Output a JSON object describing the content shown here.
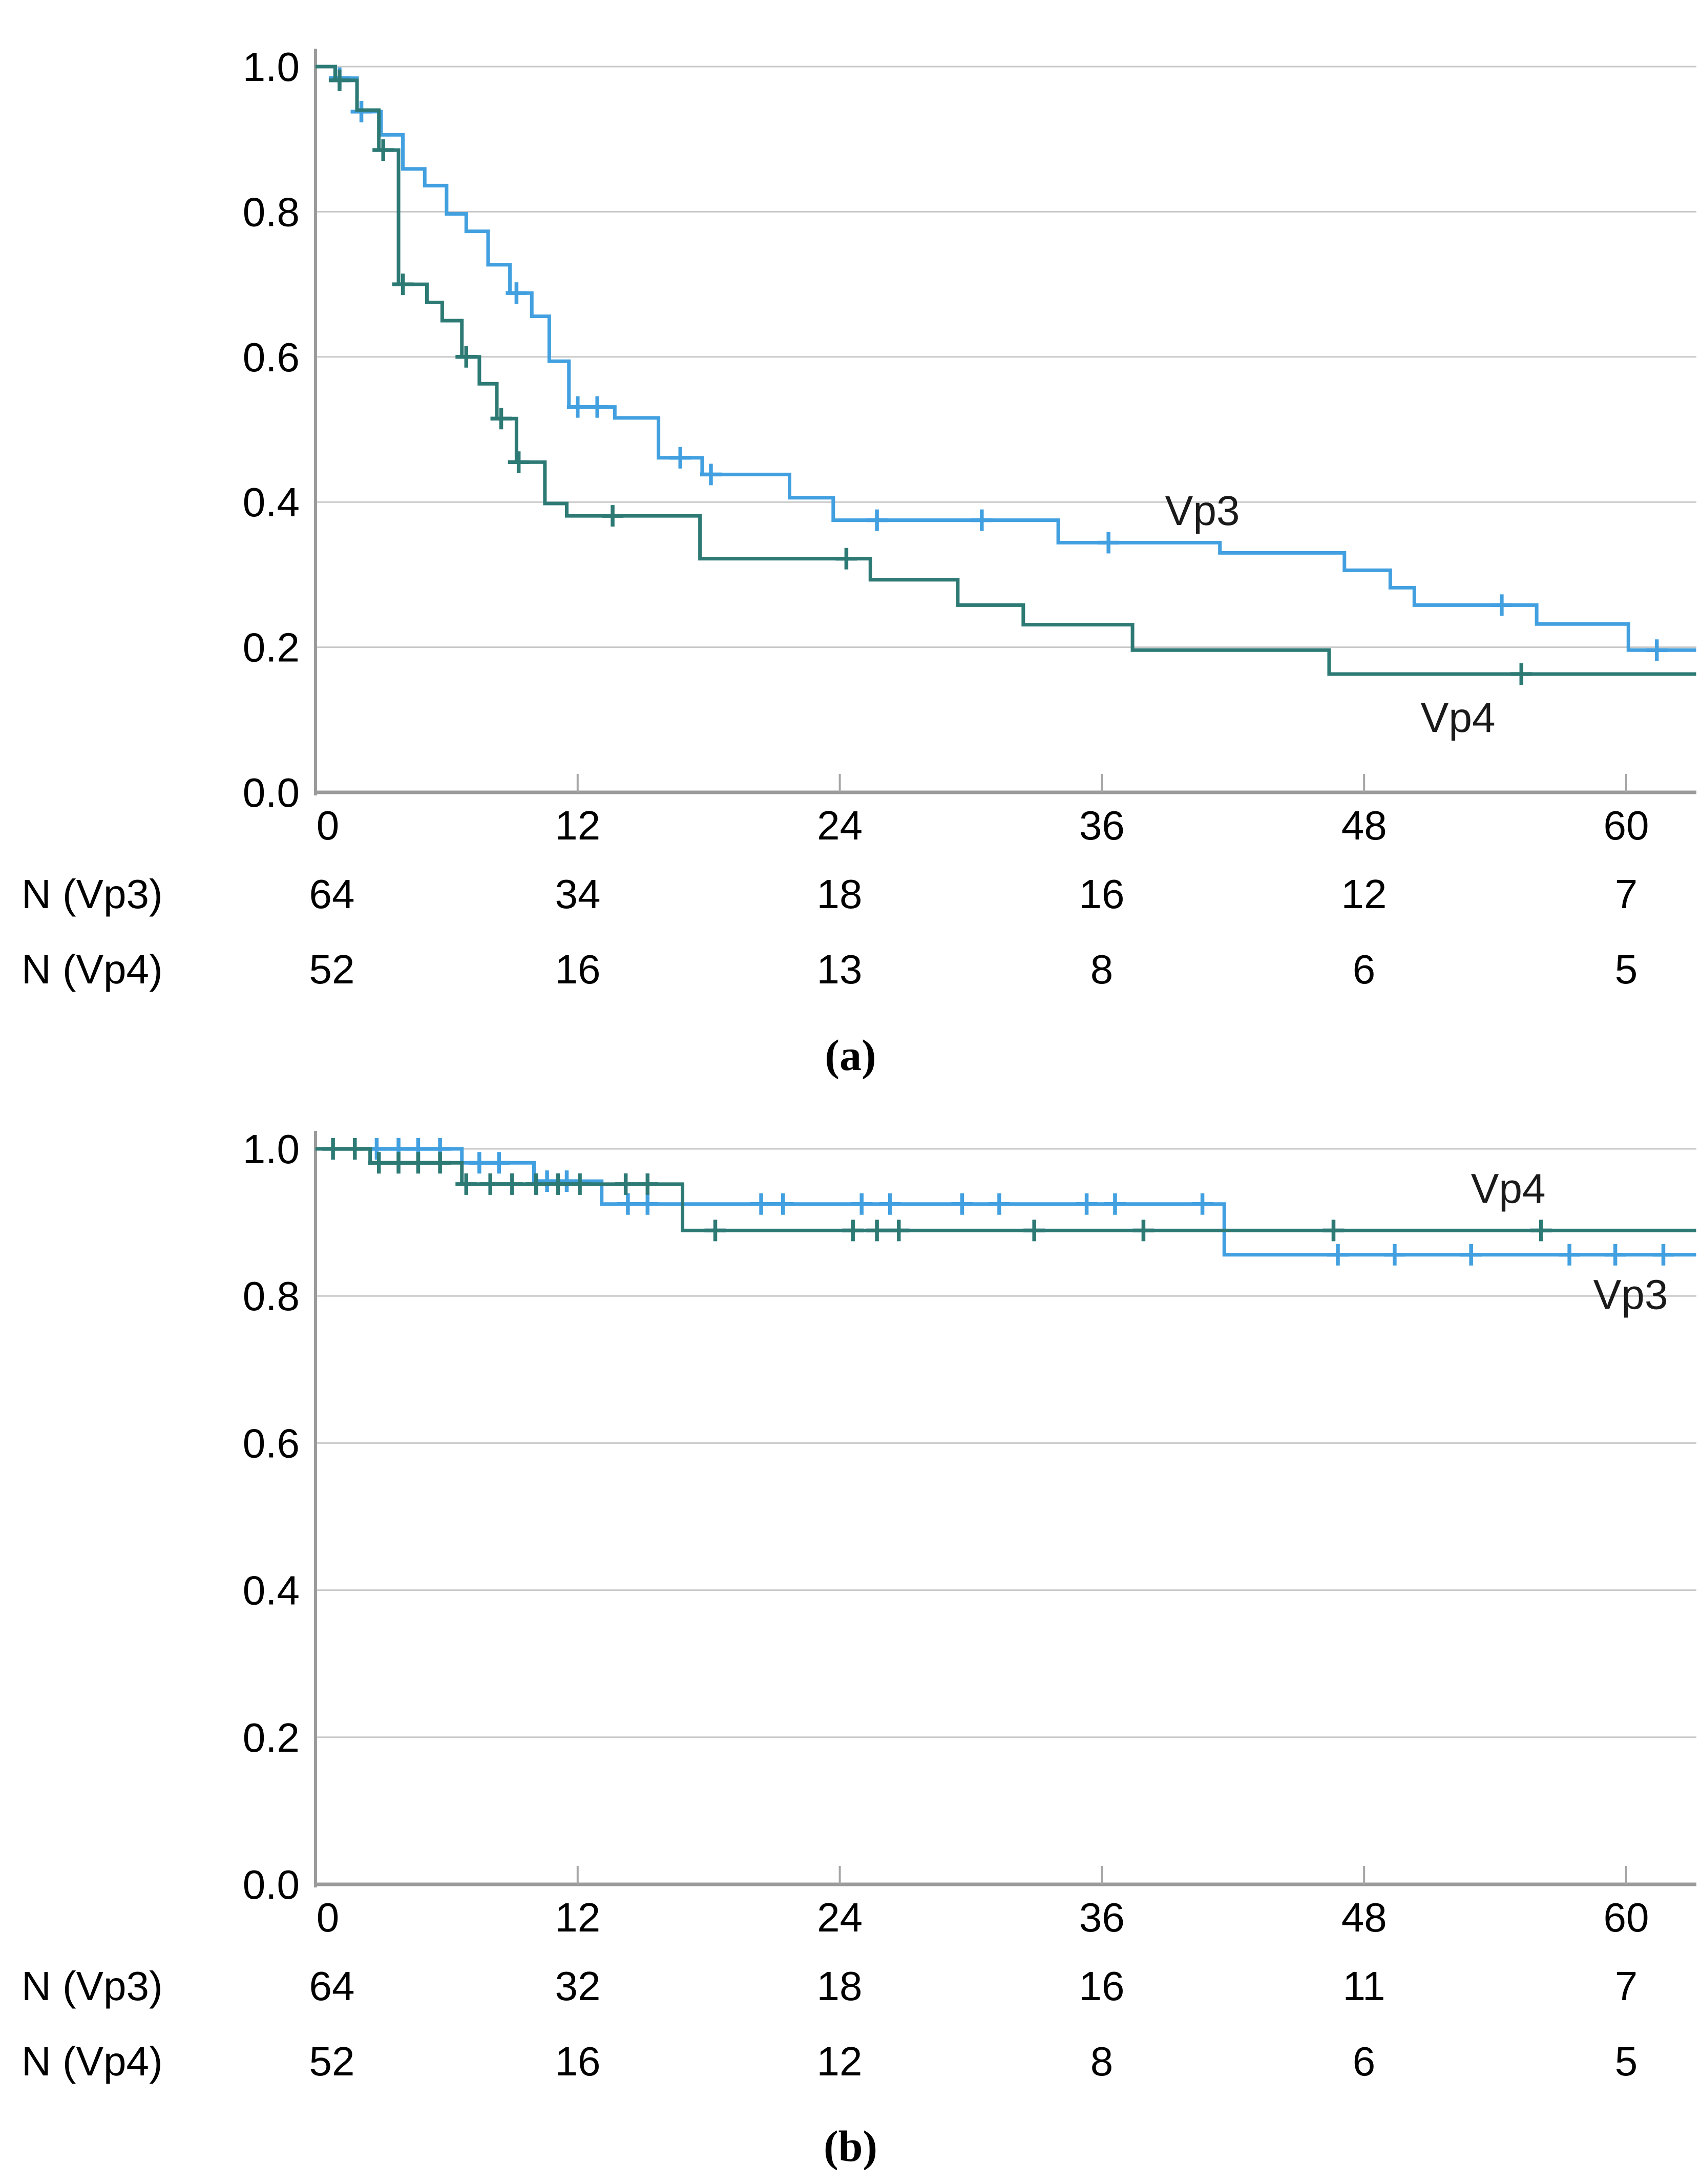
{
  "colors": {
    "vp3": "#42A0E0",
    "vp4": "#2D7A75",
    "grid": "#C9C9C9",
    "axis": "#9B9B9B",
    "tick": "#A6A6A6",
    "text": "#000000",
    "curve_label": "#1A1A1A"
  },
  "chart_data": [
    {
      "id": "a",
      "type": "line",
      "subtype": "kaplan-meier-step",
      "caption": "(a)",
      "x_ticks": [
        0,
        12,
        24,
        36,
        48,
        60
      ],
      "y_ticks": [
        {
          "label": "1.0",
          "value": 1.0
        },
        {
          "label": "0.8",
          "value": 0.8
        },
        {
          "label": "0.6",
          "value": 0.6
        },
        {
          "label": "0.4",
          "value": 0.4
        },
        {
          "label": "0.2",
          "value": 0.2
        },
        {
          "label": "0.0",
          "value": 0.0
        }
      ],
      "xlim": [
        0,
        63.2
      ],
      "ylim": [
        0,
        1
      ],
      "grid": true,
      "series": [
        {
          "name": "Vp3",
          "color_key": "vp3",
          "label_pos": [
            40.6,
            0.388
          ],
          "end": 63.2,
          "steps": [
            [
              0,
              1.0
            ],
            [
              0.9,
              0.984
            ],
            [
              1.9,
              0.938
            ],
            [
              3.0,
              0.906
            ],
            [
              4.0,
              0.859
            ],
            [
              5.0,
              0.836
            ],
            [
              6.0,
              0.797
            ],
            [
              6.9,
              0.773
            ],
            [
              7.9,
              0.727
            ],
            [
              8.9,
              0.688
            ],
            [
              9.9,
              0.656
            ],
            [
              10.7,
              0.594
            ],
            [
              11.6,
              0.531
            ],
            [
              13.7,
              0.516
            ],
            [
              15.7,
              0.461
            ],
            [
              17.7,
              0.438
            ],
            [
              21.7,
              0.406
            ],
            [
              23.7,
              0.375
            ],
            [
              34.0,
              0.344
            ],
            [
              41.4,
              0.33
            ],
            [
              47.1,
              0.306
            ],
            [
              49.2,
              0.282
            ],
            [
              50.3,
              0.258
            ],
            [
              55.9,
              0.232
            ],
            [
              60.1,
              0.196
            ]
          ],
          "censors": [
            [
              1.1,
              0.984
            ],
            [
              2.1,
              0.938
            ],
            [
              9.2,
              0.688
            ],
            [
              12.0,
              0.531
            ],
            [
              12.9,
              0.531
            ],
            [
              16.7,
              0.461
            ],
            [
              18.1,
              0.438
            ],
            [
              25.7,
              0.375
            ],
            [
              30.5,
              0.375
            ],
            [
              36.3,
              0.344
            ],
            [
              54.3,
              0.258
            ],
            [
              61.4,
              0.196
            ]
          ]
        },
        {
          "name": "Vp4",
          "color_key": "vp4",
          "label_pos": [
            52.3,
            0.103
          ],
          "end": 63.2,
          "steps": [
            [
              0,
              1.0
            ],
            [
              0.9,
              0.981
            ],
            [
              1.9,
              0.94
            ],
            [
              2.9,
              0.885
            ],
            [
              3.8,
              0.7
            ],
            [
              5.1,
              0.675
            ],
            [
              5.8,
              0.65
            ],
            [
              6.7,
              0.6
            ],
            [
              7.5,
              0.563
            ],
            [
              8.3,
              0.515
            ],
            [
              9.2,
              0.455
            ],
            [
              10.5,
              0.398
            ],
            [
              11.5,
              0.381
            ],
            [
              17.6,
              0.322
            ],
            [
              25.4,
              0.293
            ],
            [
              29.4,
              0.258
            ],
            [
              32.4,
              0.231
            ],
            [
              37.4,
              0.196
            ],
            [
              46.4,
              0.163
            ]
          ],
          "censors": [
            [
              1.1,
              0.981
            ],
            [
              3.1,
              0.885
            ],
            [
              4.0,
              0.7
            ],
            [
              6.9,
              0.6
            ],
            [
              8.5,
              0.515
            ],
            [
              9.3,
              0.455
            ],
            [
              13.6,
              0.381
            ],
            [
              24.3,
              0.322
            ],
            [
              55.2,
              0.163
            ]
          ]
        }
      ],
      "risk_table": {
        "rows": [
          {
            "label": "N (Vp3)",
            "values": [
              "64",
              "34",
              "18",
              "16",
              "12",
              "7"
            ]
          },
          {
            "label": "N (Vp4)",
            "values": [
              "52",
              "16",
              "13",
              "8",
              "6",
              "5"
            ]
          }
        ]
      }
    },
    {
      "id": "b",
      "type": "line",
      "subtype": "kaplan-meier-step",
      "caption": "(b)",
      "x_ticks": [
        0,
        12,
        24,
        36,
        48,
        60
      ],
      "y_ticks": [
        {
          "label": "1.0",
          "value": 1.0
        },
        {
          "label": "0.8",
          "value": 0.8
        },
        {
          "label": "0.6",
          "value": 0.6
        },
        {
          "label": "0.4",
          "value": 0.4
        },
        {
          "label": "0.2",
          "value": 0.2
        },
        {
          "label": "0.0",
          "value": 0.0
        }
      ],
      "xlim": [
        0,
        63.2
      ],
      "ylim": [
        0,
        1
      ],
      "grid": true,
      "series": [
        {
          "name": "Vp3",
          "color_key": "vp3",
          "label_pos": [
            60.2,
            0.802
          ],
          "end": 63.2,
          "steps": [
            [
              0,
              1.0
            ],
            [
              6.7,
              0.981
            ],
            [
              10.0,
              0.956
            ],
            [
              13.1,
              0.925
            ],
            [
              41.6,
              0.856
            ]
          ],
          "censors": [
            [
              2.8,
              1.0
            ],
            [
              3.8,
              1.0
            ],
            [
              4.7,
              1.0
            ],
            [
              5.7,
              1.0
            ],
            [
              7.5,
              0.981
            ],
            [
              8.4,
              0.981
            ],
            [
              10.6,
              0.956
            ],
            [
              11.5,
              0.956
            ],
            [
              14.3,
              0.925
            ],
            [
              15.2,
              0.925
            ],
            [
              20.4,
              0.925
            ],
            [
              21.4,
              0.925
            ],
            [
              25.0,
              0.925
            ],
            [
              26.3,
              0.925
            ],
            [
              29.6,
              0.925
            ],
            [
              31.3,
              0.925
            ],
            [
              35.3,
              0.925
            ],
            [
              36.6,
              0.925
            ],
            [
              40.6,
              0.925
            ],
            [
              46.8,
              0.856
            ],
            [
              49.4,
              0.856
            ],
            [
              52.9,
              0.856
            ],
            [
              57.4,
              0.856
            ],
            [
              59.5,
              0.856
            ],
            [
              61.7,
              0.856
            ]
          ]
        },
        {
          "name": "Vp4",
          "color_key": "vp4",
          "label_pos": [
            54.6,
            0.946
          ],
          "end": 63.2,
          "steps": [
            [
              0,
              1.0
            ],
            [
              2.5,
              0.981
            ],
            [
              6.7,
              0.952
            ],
            [
              16.8,
              0.889
            ]
          ],
          "censors": [
            [
              0.8,
              1.0
            ],
            [
              1.8,
              1.0
            ],
            [
              2.9,
              0.981
            ],
            [
              3.8,
              0.981
            ],
            [
              4.7,
              0.981
            ],
            [
              5.7,
              0.981
            ],
            [
              6.9,
              0.952
            ],
            [
              8.0,
              0.952
            ],
            [
              9.0,
              0.952
            ],
            [
              10.1,
              0.952
            ],
            [
              11.1,
              0.952
            ],
            [
              12.1,
              0.952
            ],
            [
              14.2,
              0.952
            ],
            [
              15.2,
              0.952
            ],
            [
              18.3,
              0.889
            ],
            [
              24.6,
              0.889
            ],
            [
              25.7,
              0.889
            ],
            [
              26.7,
              0.889
            ],
            [
              32.9,
              0.889
            ],
            [
              37.9,
              0.889
            ],
            [
              46.6,
              0.889
            ],
            [
              56.1,
              0.889
            ]
          ]
        }
      ],
      "risk_table": {
        "rows": [
          {
            "label": "N (Vp3)",
            "values": [
              "64",
              "32",
              "18",
              "16",
              "11",
              "7"
            ]
          },
          {
            "label": "N (Vp4)",
            "values": [
              "52",
              "16",
              "12",
              "8",
              "6",
              "5"
            ]
          }
        ]
      }
    }
  ]
}
